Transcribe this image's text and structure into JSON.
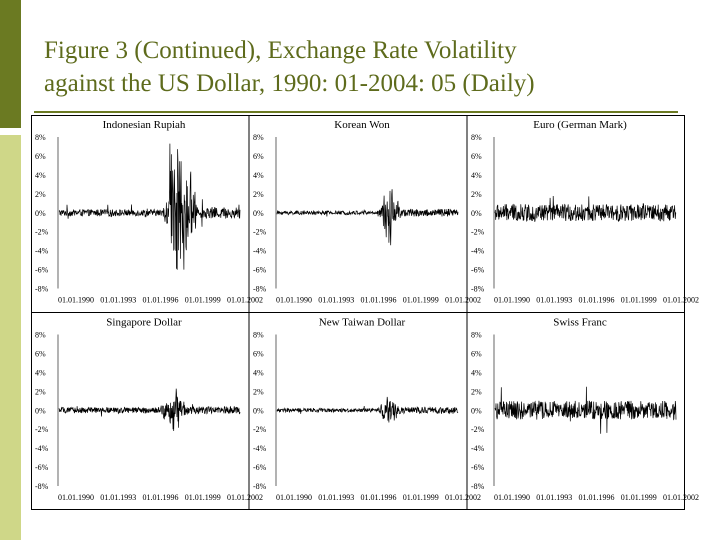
{
  "slide": {
    "title_line1": "Figure 3 (Continued), Exchange Rate Volatility",
    "title_line2": "against the US Dollar, 1990: 01-2004: 05 (Daily)"
  },
  "colors": {
    "accent_dark": "#6b7a22",
    "accent_light": "#cfd788",
    "title": "#5e6b1c",
    "series": "#000000"
  },
  "chart_data": [
    {
      "type": "line",
      "title": "Indonesian Rupiah",
      "ylim": [
        -8,
        8
      ],
      "yticks": [
        "8%",
        "6%",
        "4%",
        "2%",
        "0%",
        "-2%",
        "-4%",
        "-6%",
        "-8%"
      ],
      "xticks": [
        "01.01.1990",
        "01.01.1993",
        "01.01.1996",
        "01.01.1999",
        "01.01.2002"
      ],
      "profile": {
        "base": 0.35,
        "crisis_start": 0.57,
        "crisis_end": 0.78,
        "crisis_amp": 8,
        "late_amp": 1.0
      }
    },
    {
      "type": "line",
      "title": "Korean Won",
      "ylim": [
        -8,
        8
      ],
      "yticks": [
        "8%",
        "6%",
        "4%",
        "2%",
        "0%",
        "-2%",
        "-4%",
        "-6%",
        "-8%"
      ],
      "xticks": [
        "01.01.1990",
        "01.01.1993",
        "01.01.1996",
        "01.01.1999",
        "01.01.2002"
      ],
      "profile": {
        "base": 0.2,
        "crisis_start": 0.55,
        "crisis_end": 0.7,
        "crisis_amp": 3,
        "late_amp": 0.8
      }
    },
    {
      "type": "line",
      "title": "Euro (German Mark)",
      "ylim": [
        -8,
        8
      ],
      "yticks": [
        "8%",
        "6%",
        "4%",
        "2%",
        "0%",
        "-2%",
        "-4%",
        "-6%",
        "-8%"
      ],
      "xticks": [
        "01.01.1990",
        "01.01.1993",
        "01.01.1996",
        "01.01.1999",
        "01.01.2002"
      ],
      "profile": {
        "base": 0.9,
        "crisis_start": 0,
        "crisis_end": 0,
        "crisis_amp": 0,
        "late_amp": 1.0
      }
    },
    {
      "type": "line",
      "title": "Singapore Dollar",
      "ylim": [
        -8,
        8
      ],
      "yticks": [
        "8%",
        "6%",
        "4%",
        "2%",
        "0%",
        "-2%",
        "-4%",
        "-6%",
        "-8%"
      ],
      "xticks": [
        "01.01.1990",
        "01.01.1993",
        "01.01.1996",
        "01.01.1999",
        "01.01.2002"
      ],
      "profile": {
        "base": 0.3,
        "crisis_start": 0.55,
        "crisis_end": 0.72,
        "crisis_amp": 2,
        "late_amp": 0.5
      }
    },
    {
      "type": "line",
      "title": "New Taiwan Dollar",
      "ylim": [
        -8,
        8
      ],
      "yticks": [
        "8%",
        "6%",
        "4%",
        "2%",
        "0%",
        "-2%",
        "-4%",
        "-6%",
        "-8%"
      ],
      "xticks": [
        "01.01.1990",
        "01.01.1993",
        "01.01.1996",
        "01.01.1999",
        "01.01.2002"
      ],
      "profile": {
        "base": 0.2,
        "crisis_start": 0.55,
        "crisis_end": 0.7,
        "crisis_amp": 1.5,
        "late_amp": 0.4
      }
    },
    {
      "type": "line",
      "title": "Swiss Franc",
      "ylim": [
        -8,
        8
      ],
      "yticks": [
        "8%",
        "6%",
        "4%",
        "2%",
        "0%",
        "-2%",
        "-4%",
        "-6%",
        "-8%"
      ],
      "xticks": [
        "01.01.1990",
        "01.01.1993",
        "01.01.1996",
        "01.01.1999",
        "01.01.2002"
      ],
      "profile": {
        "base": 1.0,
        "crisis_start": 0,
        "crisis_end": 0,
        "crisis_amp": 0,
        "late_amp": 1.0
      }
    }
  ]
}
